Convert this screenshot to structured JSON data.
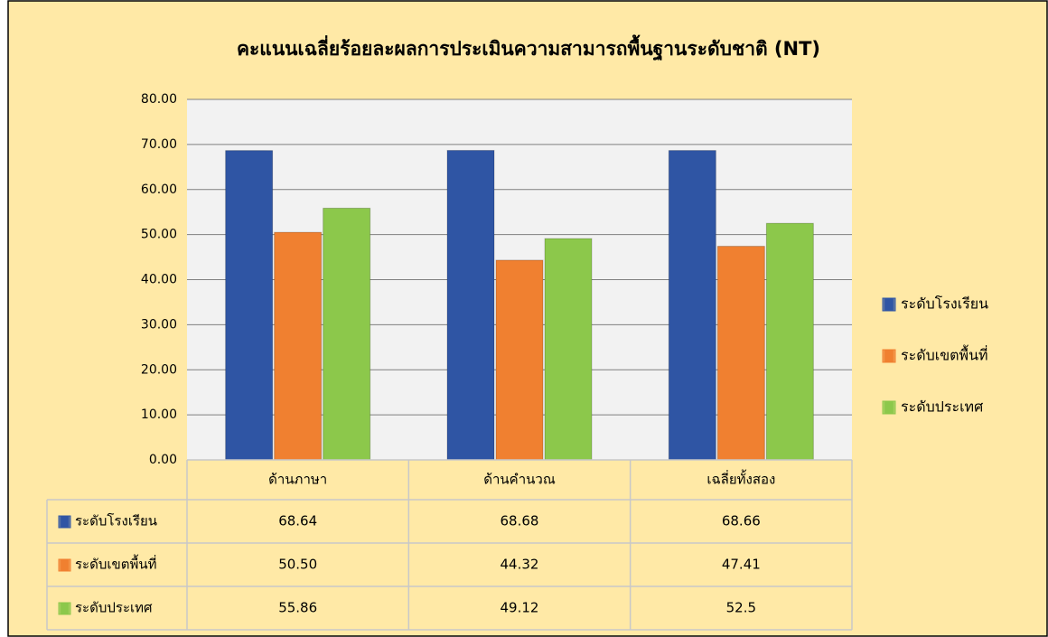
{
  "chart_data": {
    "type": "bar",
    "title": "คะแนนเฉลี่ยร้อยละผลการประเมินความสามารถพื้นฐานระดับชาติ (NT)",
    "categories": [
      "ด้านภาษา",
      "ด้านคำนวณ",
      "เฉลี่ยทั้งสอง"
    ],
    "series": [
      {
        "name": "ระดับโรงเรียน",
        "color": "#2f55a4",
        "values": [
          68.64,
          68.68,
          68.66
        ]
      },
      {
        "name": "ระดับเขตพื้นที่",
        "color": "#f08030",
        "values": [
          50.5,
          44.32,
          47.41
        ],
        "value_labels": [
          "50.50",
          "44.32",
          "47.41"
        ]
      },
      {
        "name": "ระดับประเทศ",
        "color": "#8cc84b",
        "values": [
          55.86,
          49.12,
          52.5
        ]
      }
    ],
    "ylim": [
      0,
      80
    ],
    "yticks": [
      {
        "value": 0,
        "label": "0.00"
      },
      {
        "value": 10,
        "label": "10.00"
      },
      {
        "value": 20,
        "label": "20.00"
      },
      {
        "value": 30,
        "label": "30.00"
      },
      {
        "value": 40,
        "label": "40.00"
      },
      {
        "value": 50,
        "label": "50.00"
      },
      {
        "value": 60,
        "label": "60.00"
      },
      {
        "value": 70,
        "label": "70.00"
      },
      {
        "value": 80,
        "label": "80.00"
      }
    ],
    "grid": true,
    "legend": "right",
    "data_table": true
  }
}
